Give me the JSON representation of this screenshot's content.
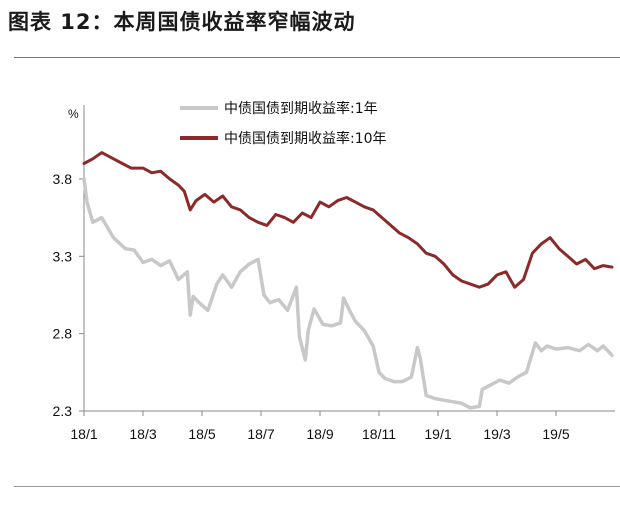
{
  "title": "图表 12：本周国债收益率窄幅波动",
  "chart_data": {
    "type": "line",
    "unit_label": "%",
    "ylim": [
      2.3,
      4.0
    ],
    "yticks": [
      2.3,
      2.8,
      3.3,
      3.8
    ],
    "ytick_labels": [
      "2.3",
      "2.8",
      "3.3",
      "3.8"
    ],
    "xlim": [
      0,
      18
    ],
    "xticks": [
      0,
      2,
      4,
      6,
      8,
      10,
      12,
      14,
      16
    ],
    "xtick_labels": [
      "18/1",
      "18/3",
      "18/5",
      "18/7",
      "18/9",
      "18/11",
      "19/1",
      "19/3",
      "19/5"
    ],
    "legend_position": "top",
    "series": [
      {
        "name": "中债国债到期收益率:1年",
        "color": "#c8c8c8",
        "x": [
          0,
          0.1,
          0.3,
          0.6,
          1.0,
          1.4,
          1.7,
          2.0,
          2.3,
          2.6,
          2.9,
          3.2,
          3.5,
          3.6,
          3.7,
          3.9,
          4.2,
          4.5,
          4.7,
          5.0,
          5.3,
          5.6,
          5.9,
          6.1,
          6.3,
          6.6,
          6.9,
          7.2,
          7.3,
          7.5,
          7.6,
          7.8,
          8.1,
          8.4,
          8.7,
          8.8,
          9.0,
          9.2,
          9.5,
          9.8,
          10.0,
          10.2,
          10.5,
          10.8,
          11.1,
          11.3,
          11.4,
          11.6,
          11.9,
          12.2,
          12.5,
          12.8,
          13.1,
          13.4,
          13.5,
          13.8,
          14.1,
          14.4,
          14.7,
          15.0,
          15.3,
          15.5,
          15.7,
          16.0,
          16.4,
          16.8,
          17.1,
          17.4,
          17.6,
          17.9
        ],
        "values": [
          3.8,
          3.65,
          3.52,
          3.55,
          3.42,
          3.35,
          3.34,
          3.26,
          3.28,
          3.24,
          3.27,
          3.15,
          3.2,
          2.92,
          3.04,
          3.0,
          2.95,
          3.12,
          3.18,
          3.1,
          3.2,
          3.25,
          3.28,
          3.05,
          3.0,
          3.02,
          2.95,
          3.1,
          2.78,
          2.63,
          2.82,
          2.96,
          2.86,
          2.85,
          2.87,
          3.03,
          2.95,
          2.88,
          2.82,
          2.72,
          2.55,
          2.51,
          2.49,
          2.49,
          2.52,
          2.71,
          2.64,
          2.4,
          2.38,
          2.37,
          2.36,
          2.35,
          2.32,
          2.33,
          2.44,
          2.47,
          2.5,
          2.48,
          2.52,
          2.55,
          2.74,
          2.69,
          2.72,
          2.7,
          2.71,
          2.69,
          2.73,
          2.69,
          2.72,
          2.66
        ]
      },
      {
        "name": "中债国债到期收益率:10年",
        "color": "#8b2a2a",
        "x": [
          0,
          0.3,
          0.6,
          1.0,
          1.3,
          1.6,
          2.0,
          2.3,
          2.6,
          2.9,
          3.2,
          3.4,
          3.6,
          3.8,
          4.1,
          4.4,
          4.7,
          5.0,
          5.3,
          5.6,
          5.9,
          6.2,
          6.5,
          6.8,
          7.1,
          7.4,
          7.7,
          8.0,
          8.3,
          8.6,
          8.9,
          9.2,
          9.5,
          9.8,
          10.1,
          10.4,
          10.7,
          11.0,
          11.3,
          11.6,
          11.9,
          12.2,
          12.5,
          12.8,
          13.1,
          13.4,
          13.7,
          14.0,
          14.3,
          14.6,
          14.9,
          15.2,
          15.5,
          15.8,
          16.1,
          16.4,
          16.7,
          17.0,
          17.3,
          17.6,
          17.9
        ],
        "values": [
          3.9,
          3.93,
          3.97,
          3.93,
          3.9,
          3.87,
          3.87,
          3.84,
          3.85,
          3.8,
          3.76,
          3.72,
          3.6,
          3.66,
          3.7,
          3.65,
          3.69,
          3.62,
          3.6,
          3.55,
          3.52,
          3.5,
          3.57,
          3.55,
          3.52,
          3.58,
          3.55,
          3.65,
          3.62,
          3.66,
          3.68,
          3.65,
          3.62,
          3.6,
          3.55,
          3.5,
          3.45,
          3.42,
          3.38,
          3.32,
          3.3,
          3.25,
          3.18,
          3.14,
          3.12,
          3.1,
          3.12,
          3.18,
          3.2,
          3.1,
          3.15,
          3.32,
          3.38,
          3.42,
          3.35,
          3.3,
          3.25,
          3.28,
          3.22,
          3.24,
          3.23
        ]
      }
    ]
  }
}
